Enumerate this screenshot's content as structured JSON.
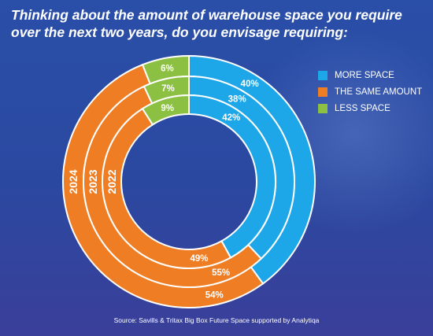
{
  "title": "Thinking about the amount of warehouse space you require over the next two years, do you envisage requiring:",
  "source": "Source: Savills & Tritax Big Box Future Space supported by Analytiqa",
  "colors": {
    "more": "#1ea7e8",
    "same": "#ee7d23",
    "less": "#8cc043",
    "background": "#2b4aa2"
  },
  "chart_data": {
    "type": "pie",
    "subtype": "multi-ring donut",
    "categories": [
      "MORE SPACE",
      "THE SAME AMOUNT",
      "LESS SPACE"
    ],
    "series": [
      {
        "name": "2024",
        "values": [
          40,
          54,
          6
        ],
        "labels": [
          "40%",
          "54%",
          "6%"
        ]
      },
      {
        "name": "2023",
        "values": [
          38,
          55,
          7
        ],
        "labels": [
          "38%",
          "55%",
          "7%"
        ]
      },
      {
        "name": "2022",
        "values": [
          42,
          49,
          9
        ],
        "labels": [
          "42%",
          "49%",
          "9%"
        ]
      }
    ],
    "legend": [
      {
        "label": "MORE SPACE",
        "color": "#1ea7e8"
      },
      {
        "label": "THE SAME AMOUNT",
        "color": "#ee7d23"
      },
      {
        "label": "LESS SPACE",
        "color": "#8cc043"
      }
    ],
    "legend_position": "right"
  }
}
